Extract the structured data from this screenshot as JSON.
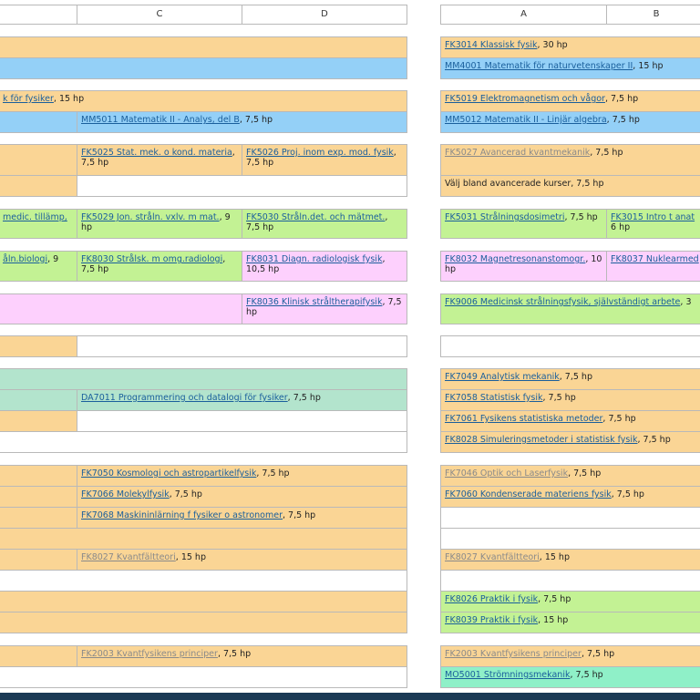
{
  "headers": {
    "left": {
      "c": "C",
      "d": "D"
    },
    "right": {
      "a": "A",
      "b": "B"
    }
  },
  "colors": {
    "orange": "#fad595",
    "blue": "#94d0f7",
    "green": "#c3f294",
    "pink": "#fdd0fd",
    "mint": "#b3e4cd",
    "aqua": "#8ff0c8"
  },
  "left": {
    "r2_b": {
      "link": "k för fysiker",
      "tail": ", 15 hp"
    },
    "r3_c": {
      "link": "MM5011 Matematik II - Analys, del B",
      "tail": ", 7,5 hp"
    },
    "r4_c": {
      "link": "FK5025 Stat. mek. o kond. materia",
      "tail": ", 7,5 hp"
    },
    "r4_d": {
      "link": "FK5026 Proj. inom exp. mod. fysik",
      "tail": ", 7,5 hp"
    },
    "r5_b": {
      "link": "medic. tillämp,",
      "tail": ""
    },
    "r5_c": {
      "link": "FK5029 Jon. stråln. vxlv. m mat.",
      "tail": ", 9 hp"
    },
    "r5_d": {
      "link": "FK5030 Stråln.det. och mätmet.",
      "tail": ", 7,5 hp"
    },
    "r6_b": {
      "link": "åln.biologi",
      "tail": ", 9"
    },
    "r6_c": {
      "link": "FK8030 Strålsk. m omg.radiologi",
      "tail": ", 7,5 hp"
    },
    "r6_d": {
      "link": "FK8031 Diagn. radiologisk fysik",
      "tail": ", 10,5 hp"
    },
    "r7_d": {
      "link": "FK8036 Klinisk stråltherapifysik",
      "tail": ", 7,5 hp"
    },
    "r9_c": {
      "link": "DA7011 Programmering och datalogi för fysiker",
      "tail": ", 7,5 hp"
    },
    "r10_c": {
      "link": "FK7050 Kosmologi och astropartikelfysik",
      "tail": ", 7,5 hp"
    },
    "r11_c": {
      "link": "FK7066 Molekylfysik",
      "tail": ", 7,5 hp"
    },
    "r12_c": {
      "link": "FK7068 Maskininlärning f fysiker o astronomer",
      "tail": ", 7,5 hp"
    },
    "r13_c": {
      "link": "FK8027 Kvantfältteori",
      "tail": ", 15 hp"
    },
    "r14_c": {
      "link": "FK2003 Kvantfysikens principer",
      "tail": ", 7,5 hp"
    }
  },
  "right": {
    "r1": {
      "link": "FK3014 Klassisk fysik",
      "tail": ", 30 hp"
    },
    "r2": {
      "link": "MM4001 Matematik för naturvetenskaper II",
      "tail": ", 15 hp"
    },
    "r3": {
      "link": "FK5019 Elektromagnetism och vågor",
      "tail": ", 7,5 hp"
    },
    "r4": {
      "link": "MM5012 Matematik II - Linjär algebra",
      "tail": ", 7,5 hp"
    },
    "r5": {
      "link": "FK5027 Avancerad kvantmekanik",
      "tail": ", 7,5 hp"
    },
    "r6": {
      "text": "Välj bland avancerade kurser, 7,5 hp"
    },
    "r7_a": {
      "link": "FK5031 Strålningsdosimetri",
      "tail": ", 7,5 hp"
    },
    "r7_b": {
      "link": "FK3015 Intro t anat",
      "tail": "6 hp"
    },
    "r8_a": {
      "link": "FK8032 Magnetresonanstomogr.",
      "tail": ", 10 hp"
    },
    "r8_b": {
      "link": "FK8037 Nuklearmed",
      "tail": ""
    },
    "r9": {
      "link": "FK9006 Medicinsk strålningsfysik, självständigt arbete",
      "tail": ", 3"
    },
    "r10": {
      "link": "FK7049 Analytisk mekanik",
      "tail": ", 7,5 hp"
    },
    "r11": {
      "link": "FK7058 Statistisk fysik",
      "tail": ", 7,5 hp"
    },
    "r12": {
      "link": "FK7061 Fysikens statistiska metoder",
      "tail": ", 7,5 hp"
    },
    "r13": {
      "link": "FK8028 Simuleringsmetoder i statistisk fysik",
      "tail": ", 7,5 hp"
    },
    "r14": {
      "link": "FK7046 Optik och Laserfysik",
      "tail": ", 7,5 hp"
    },
    "r15": {
      "link": "FK7060 Kondenserade materiens fysik",
      "tail": ", 7,5 hp"
    },
    "r16": {
      "link": "FK8027 Kvantfältteori",
      "tail": ", 15 hp"
    },
    "r17": {
      "link": "FK8026 Praktik i fysik",
      "tail": ", 7,5 hp"
    },
    "r18": {
      "link": "FK8039 Praktik i fysik",
      "tail": ", 15 hp"
    },
    "r19": {
      "link": "FK2003 Kvantfysikens principer",
      "tail": ", 7,5 hp"
    },
    "r20": {
      "link": "MO5001 Strömningsmekanik",
      "tail": ", 7,5 hp"
    }
  }
}
